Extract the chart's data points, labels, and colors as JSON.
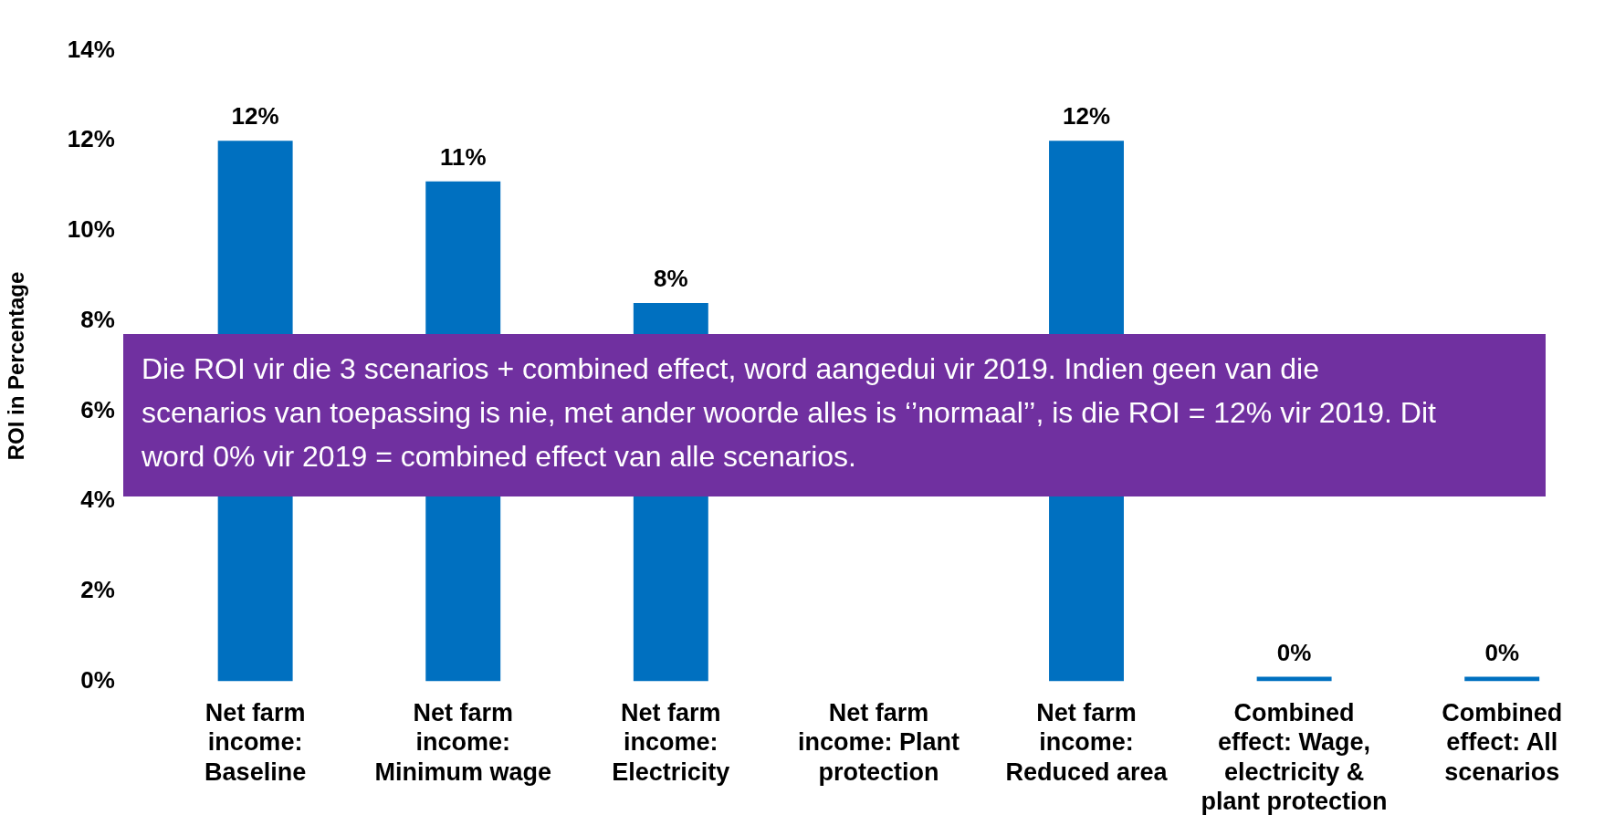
{
  "chart_data": {
    "type": "bar",
    "ylabel": "ROI in Percentage",
    "categories": [
      "Net farm income: Baseline",
      "Net farm income: Minimum wage",
      "Net farm income: Electricity",
      "Net farm income: Plant protection",
      "Net farm income: Reduced area",
      "Combined effect: Wage, electricity & plant protection",
      "Combined effect: All scenarios"
    ],
    "values": [
      12,
      11.1,
      8.4,
      null,
      12,
      0.1,
      0.1
    ],
    "value_labels": [
      "12%",
      "11%",
      "8%",
      null,
      "12%",
      "0%",
      "0%"
    ],
    "color": "#0070c0",
    "ylim": [
      0,
      14
    ],
    "yticks": [
      {
        "value": 0,
        "label": "0%"
      },
      {
        "value": 2,
        "label": "2%"
      },
      {
        "value": 4,
        "label": "4%"
      },
      {
        "value": 6,
        "label": "6%"
      },
      {
        "value": 8,
        "label": "8%"
      },
      {
        "value": 10,
        "label": "10%"
      },
      {
        "value": 12,
        "label": "12%"
      },
      {
        "value": 14,
        "label": "14%"
      }
    ],
    "grid": false,
    "legend": false,
    "annotations": [
      "Die ROI vir die 3 scenarios + combined effect, word aangedui vir 2019. Indien geen van die scenarios van toepassing is nie, met ander woorde alles is ‘’normaal’’, is die ROI = 12% vir 2019. Dit word 0% vir 2019 = combined effect van alle scenarios."
    ]
  }
}
